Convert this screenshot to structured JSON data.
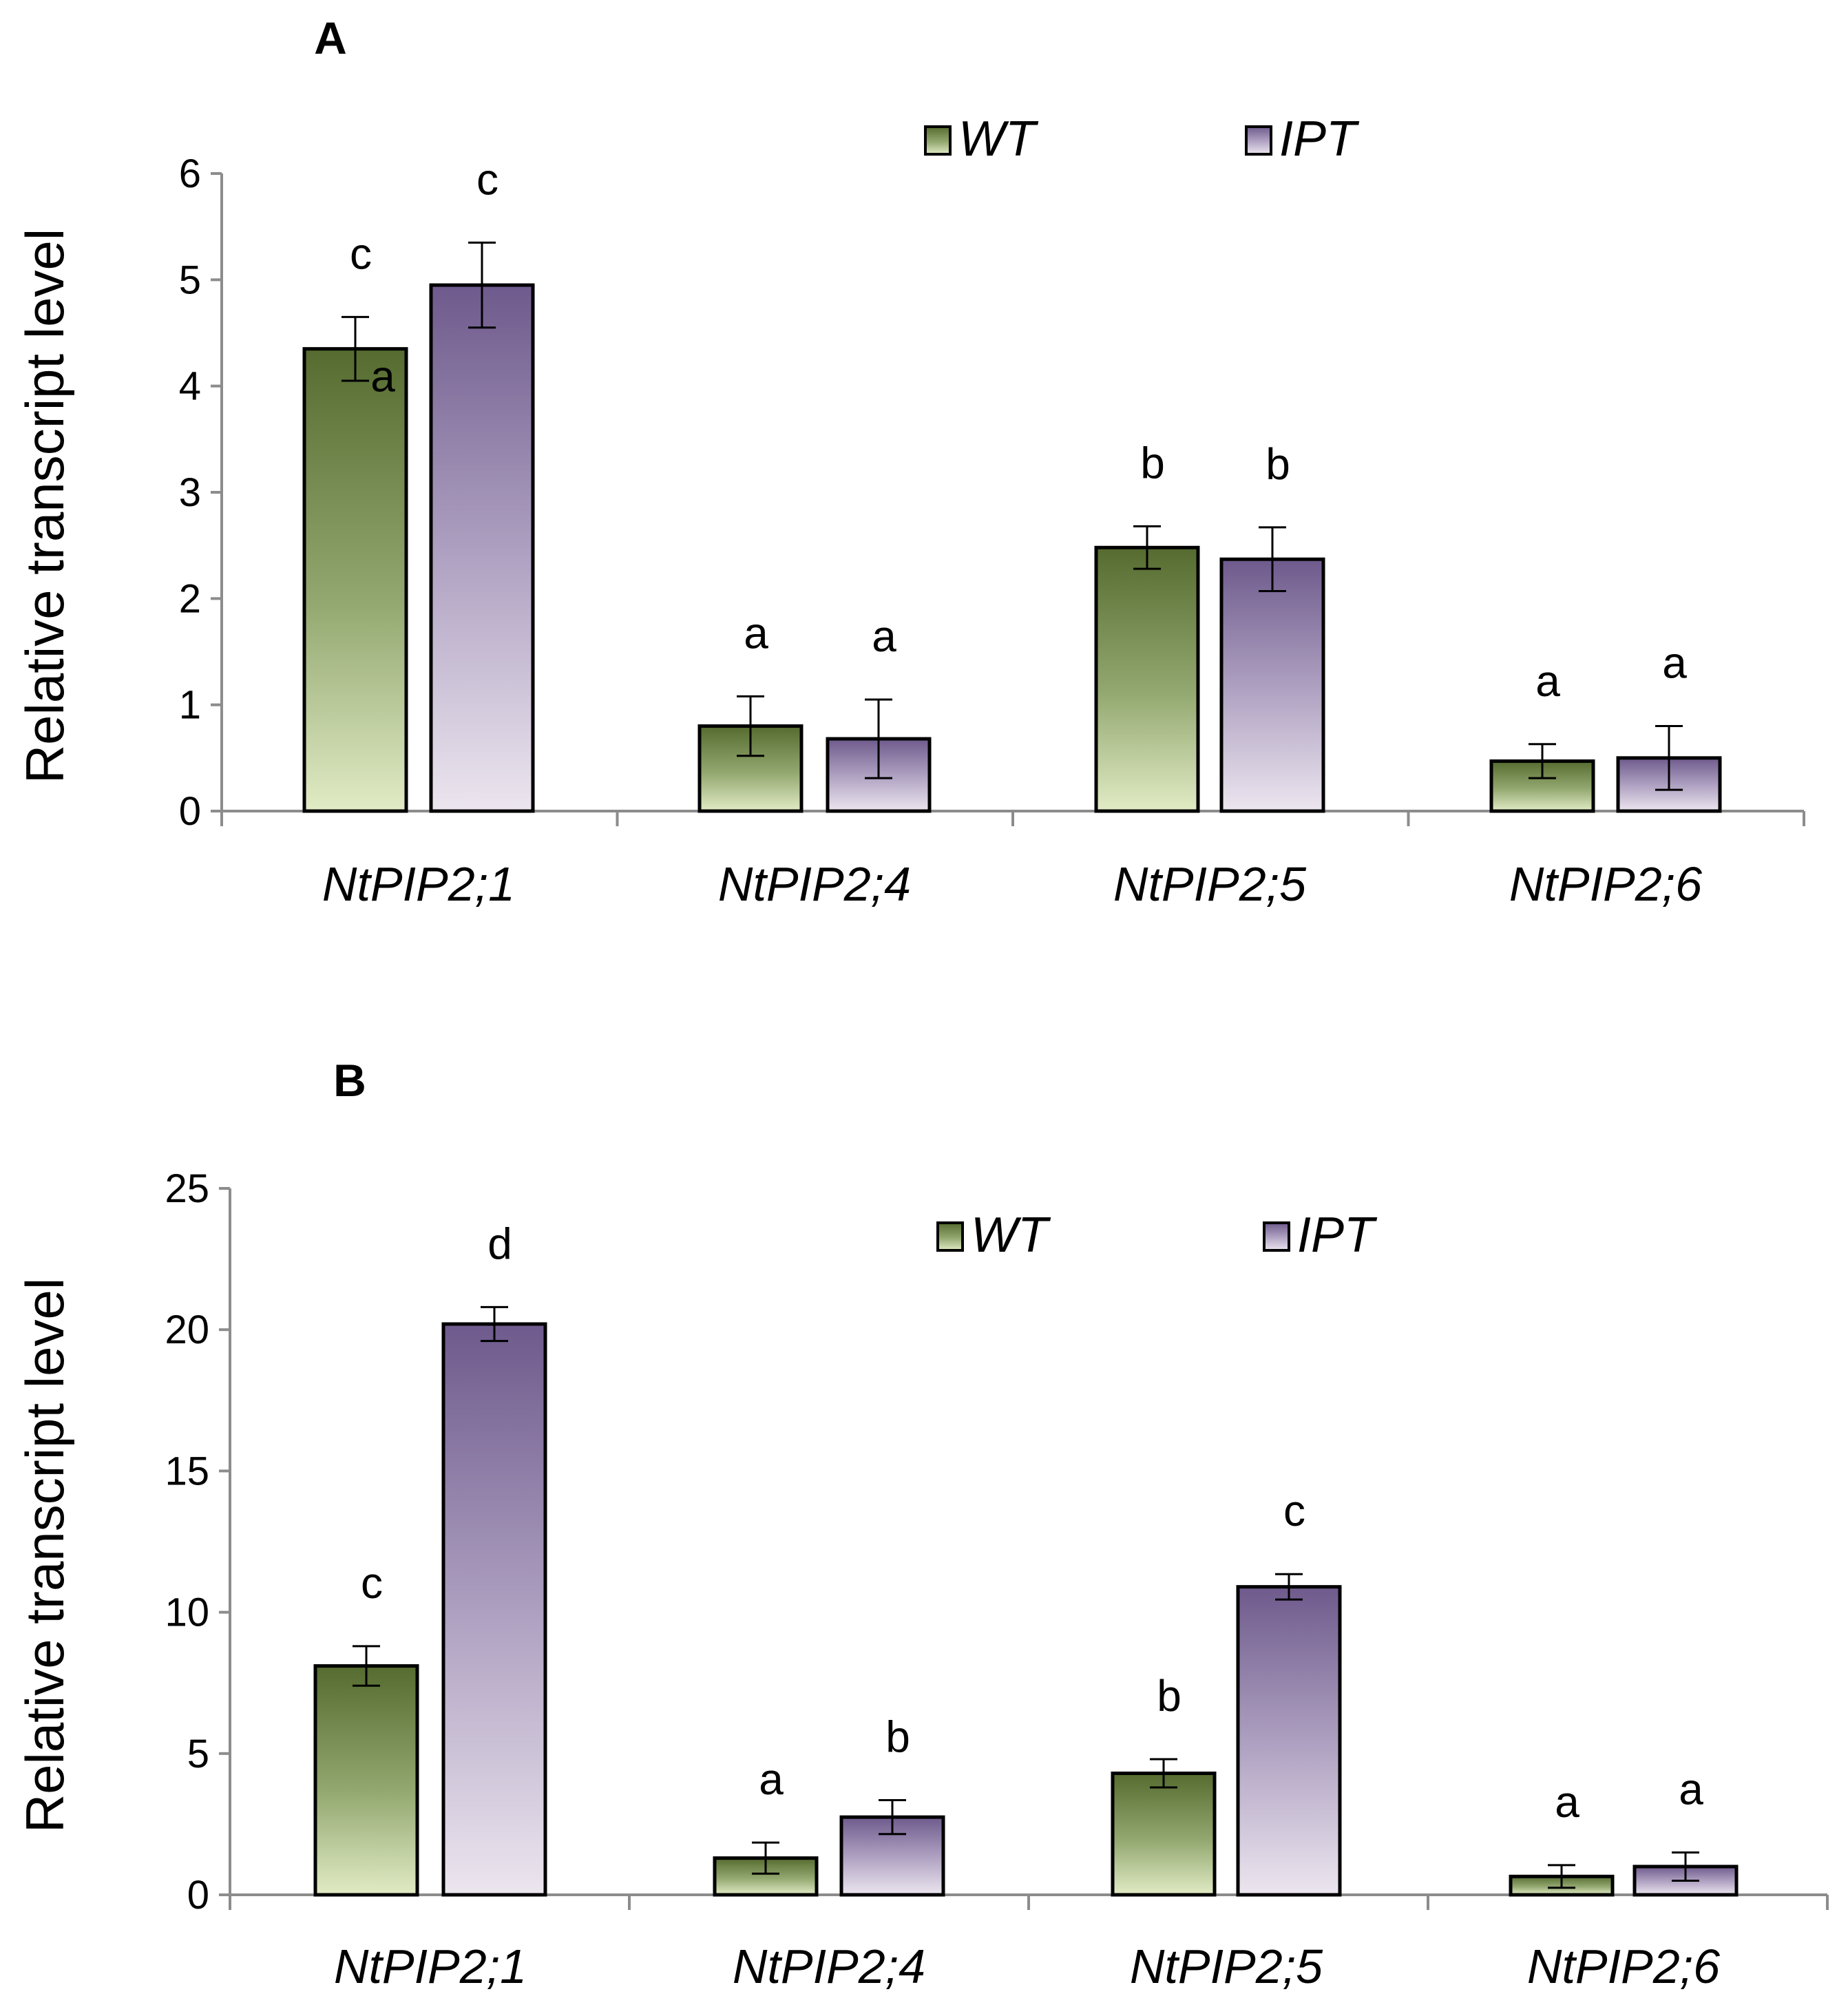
{
  "figure": {
    "colors": {
      "wt_dark": "#556b2f",
      "wt_light": "#e1ebc5",
      "ipt_dark": "#6e5a8c",
      "ipt_light": "#e6dcea",
      "axis": "#8c8c8c",
      "outline": "#000000"
    }
  },
  "chart_data": [
    {
      "panel": "A",
      "type": "bar",
      "title": "",
      "xlabel": "",
      "ylabel": "Relative transcript level",
      "ylim": [
        0,
        6
      ],
      "yticks": [
        0,
        1,
        2,
        3,
        4,
        5,
        6
      ],
      "ytick_labels": [
        "0",
        "1",
        "2",
        "3",
        "4",
        "5",
        "6"
      ],
      "categories": [
        "NtPIP2;1",
        "NtPIP2;4",
        "NtPIP2;5",
        "NtPIP2;6"
      ],
      "legend": [
        "WT",
        "IPT"
      ],
      "legend_position": "top-right",
      "series": [
        {
          "name": "WT",
          "values": [
            4.35,
            0.8,
            2.48,
            0.47
          ],
          "errors": [
            0.3,
            0.28,
            0.2,
            0.16
          ],
          "letters": [
            "c",
            "a",
            "b",
            "a"
          ]
        },
        {
          "name": "IPT",
          "values": [
            4.95,
            0.68,
            2.37,
            0.5
          ],
          "errors": [
            0.4,
            0.37,
            0.3,
            0.3
          ],
          "letters": [
            "c",
            "a",
            "b",
            "a"
          ]
        }
      ],
      "stray_letter": "a"
    },
    {
      "panel": "B",
      "type": "bar",
      "title": "",
      "xlabel": "",
      "ylabel": "Relative transcript level",
      "ylim": [
        0,
        25
      ],
      "yticks": [
        0,
        5,
        10,
        15,
        20,
        25
      ],
      "ytick_labels": [
        "0",
        "5",
        "10",
        "15",
        "20",
        "25"
      ],
      "categories": [
        "NtPIP2;1",
        "NtPIP2;4",
        "NtPIP2;5",
        "NtPIP2;6"
      ],
      "legend": [
        "WT",
        "IPT"
      ],
      "legend_position": "top-right",
      "series": [
        {
          "name": "WT",
          "values": [
            8.1,
            1.3,
            4.3,
            0.65
          ],
          "errors": [
            0.7,
            0.55,
            0.5,
            0.4
          ],
          "letters": [
            "c",
            "a",
            "b",
            "a"
          ]
        },
        {
          "name": "IPT",
          "values": [
            20.2,
            2.75,
            10.9,
            1.0
          ],
          "errors": [
            0.6,
            0.6,
            0.45,
            0.5
          ],
          "letters": [
            "d",
            "b",
            "c",
            "a"
          ]
        }
      ]
    }
  ]
}
